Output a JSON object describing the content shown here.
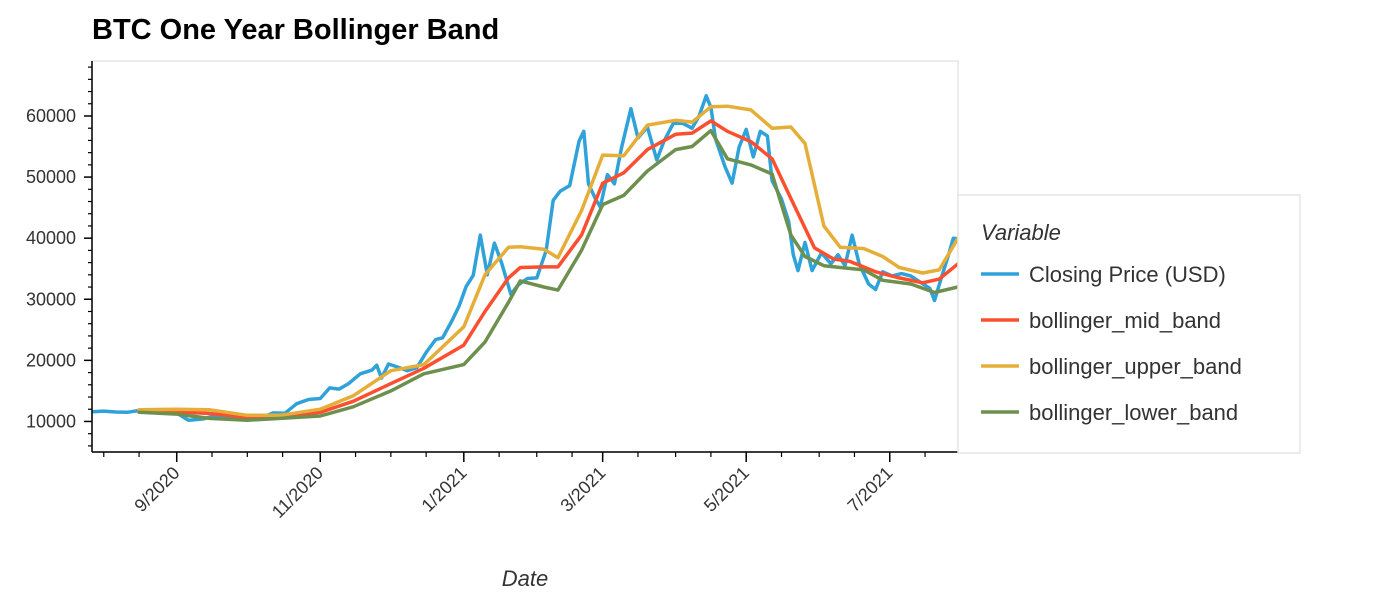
{
  "chart_data": {
    "type": "line",
    "title": "BTC One Year Bollinger Band",
    "xlabel": "Date",
    "ylabel": "",
    "x_range": [
      "2020-07-27",
      "2021-07-30"
    ],
    "ylim": [
      5000,
      69000
    ],
    "x_tick_labels": [
      {
        "date": "2020-09-01",
        "label": "9/2020"
      },
      {
        "date": "2020-11-01",
        "label": "11/2020"
      },
      {
        "date": "2021-01-01",
        "label": "1/2021"
      },
      {
        "date": "2021-03-01",
        "label": "3/2021"
      },
      {
        "date": "2021-05-01",
        "label": "5/2021"
      },
      {
        "date": "2021-07-01",
        "label": "7/2021"
      }
    ],
    "y_ticks": [
      10000,
      20000,
      30000,
      40000,
      50000,
      60000
    ],
    "y_tick_labels": [
      "10000",
      "20000",
      "30000",
      "40000",
      "50000",
      "60000"
    ],
    "grid": false,
    "legend": {
      "title": "Variable",
      "placement": "right"
    },
    "series": [
      {
        "name": "Closing Price (USD)",
        "color": "#30a2da",
        "points": [
          [
            "2020-07-27",
            11600
          ],
          [
            "2020-08-01",
            11700
          ],
          [
            "2020-08-06",
            11550
          ],
          [
            "2020-08-11",
            11500
          ],
          [
            "2020-08-16",
            11800
          ],
          [
            "2020-08-21",
            11650
          ],
          [
            "2020-08-26",
            11550
          ],
          [
            "2020-08-31",
            11700
          ],
          [
            "2020-09-03",
            10900
          ],
          [
            "2020-09-06",
            10200
          ],
          [
            "2020-09-09",
            10300
          ],
          [
            "2020-09-12",
            10400
          ],
          [
            "2020-09-17",
            10900
          ],
          [
            "2020-09-22",
            10500
          ],
          [
            "2020-09-27",
            10800
          ],
          [
            "2020-10-02",
            10550
          ],
          [
            "2020-10-07",
            10600
          ],
          [
            "2020-10-12",
            11400
          ],
          [
            "2020-10-17",
            11350
          ],
          [
            "2020-10-22",
            12900
          ],
          [
            "2020-10-27",
            13600
          ],
          [
            "2020-11-01",
            13750
          ],
          [
            "2020-11-05",
            15500
          ],
          [
            "2020-11-09",
            15300
          ],
          [
            "2020-11-13",
            16200
          ],
          [
            "2020-11-18",
            17800
          ],
          [
            "2020-11-23",
            18400
          ],
          [
            "2020-11-25",
            19200
          ],
          [
            "2020-11-27",
            17100
          ],
          [
            "2020-11-30",
            19400
          ],
          [
            "2020-12-04",
            18900
          ],
          [
            "2020-12-08",
            18300
          ],
          [
            "2020-12-12",
            18800
          ],
          [
            "2020-12-16",
            21300
          ],
          [
            "2020-12-20",
            23400
          ],
          [
            "2020-12-23",
            23700
          ],
          [
            "2020-12-27",
            26500
          ],
          [
            "2020-12-30",
            28900
          ],
          [
            "2021-01-02",
            32100
          ],
          [
            "2021-01-05",
            33900
          ],
          [
            "2021-01-08",
            40500
          ],
          [
            "2021-01-11",
            34000
          ],
          [
            "2021-01-14",
            39200
          ],
          [
            "2021-01-17",
            36000
          ],
          [
            "2021-01-21",
            30800
          ],
          [
            "2021-01-24",
            32300
          ],
          [
            "2021-01-28",
            33400
          ],
          [
            "2021-02-01",
            33500
          ],
          [
            "2021-02-05",
            38000
          ],
          [
            "2021-02-08",
            46200
          ],
          [
            "2021-02-11",
            47700
          ],
          [
            "2021-02-15",
            48600
          ],
          [
            "2021-02-19",
            55900
          ],
          [
            "2021-02-21",
            57500
          ],
          [
            "2021-02-23",
            48900
          ],
          [
            "2021-02-26",
            46400
          ],
          [
            "2021-02-28",
            45100
          ],
          [
            "2021-03-03",
            50400
          ],
          [
            "2021-03-06",
            48900
          ],
          [
            "2021-03-09",
            54800
          ],
          [
            "2021-03-13",
            61200
          ],
          [
            "2021-03-16",
            56400
          ],
          [
            "2021-03-20",
            58200
          ],
          [
            "2021-03-24",
            52800
          ],
          [
            "2021-03-27",
            55800
          ],
          [
            "2021-03-31",
            58800
          ],
          [
            "2021-04-04",
            58800
          ],
          [
            "2021-04-08",
            58000
          ],
          [
            "2021-04-11",
            60000
          ],
          [
            "2021-04-14",
            63300
          ],
          [
            "2021-04-16",
            61400
          ],
          [
            "2021-04-18",
            56200
          ],
          [
            "2021-04-22",
            51700
          ],
          [
            "2021-04-25",
            49000
          ],
          [
            "2021-04-28",
            54900
          ],
          [
            "2021-05-01",
            57800
          ],
          [
            "2021-05-04",
            53300
          ],
          [
            "2021-05-07",
            57500
          ],
          [
            "2021-05-10",
            56700
          ],
          [
            "2021-05-12",
            49400
          ],
          [
            "2021-05-16",
            46400
          ],
          [
            "2021-05-19",
            42800
          ],
          [
            "2021-05-21",
            37300
          ],
          [
            "2021-05-23",
            34700
          ],
          [
            "2021-05-26",
            39300
          ],
          [
            "2021-05-29",
            34700
          ],
          [
            "2021-06-02",
            37600
          ],
          [
            "2021-06-06",
            35800
          ],
          [
            "2021-06-09",
            37300
          ],
          [
            "2021-06-12",
            35500
          ],
          [
            "2021-06-15",
            40500
          ],
          [
            "2021-06-18",
            35800
          ],
          [
            "2021-06-22",
            32500
          ],
          [
            "2021-06-25",
            31600
          ],
          [
            "2021-06-28",
            34500
          ],
          [
            "2021-07-02",
            33800
          ],
          [
            "2021-07-06",
            34200
          ],
          [
            "2021-07-10",
            33800
          ],
          [
            "2021-07-14",
            32800
          ],
          [
            "2021-07-18",
            31800
          ],
          [
            "2021-07-20",
            29800
          ],
          [
            "2021-07-23",
            33600
          ],
          [
            "2021-07-26",
            37300
          ],
          [
            "2021-07-28",
            40000
          ],
          [
            "2021-07-30",
            39900
          ]
        ]
      },
      {
        "name": "bollinger_mid_band",
        "color": "#fc4f30",
        "points": [
          [
            "2020-08-16",
            11650
          ],
          [
            "2020-09-01",
            11600
          ],
          [
            "2020-09-15",
            11300
          ],
          [
            "2020-10-01",
            10700
          ],
          [
            "2020-10-15",
            10700
          ],
          [
            "2020-11-01",
            11500
          ],
          [
            "2020-11-15",
            13300
          ],
          [
            "2020-12-01",
            16200
          ],
          [
            "2020-12-15",
            18700
          ],
          [
            "2021-01-01",
            22500
          ],
          [
            "2021-01-10",
            28000
          ],
          [
            "2021-01-20",
            33500
          ],
          [
            "2021-01-25",
            35200
          ],
          [
            "2021-02-04",
            35300
          ],
          [
            "2021-02-10",
            35300
          ],
          [
            "2021-02-20",
            40500
          ],
          [
            "2021-03-01",
            49000
          ],
          [
            "2021-03-10",
            50700
          ],
          [
            "2021-03-20",
            54500
          ],
          [
            "2021-04-01",
            57000
          ],
          [
            "2021-04-08",
            57200
          ],
          [
            "2021-04-16",
            59200
          ],
          [
            "2021-04-23",
            57500
          ],
          [
            "2021-05-03",
            55800
          ],
          [
            "2021-05-12",
            53000
          ],
          [
            "2021-05-20",
            46500
          ],
          [
            "2021-05-30",
            38400
          ],
          [
            "2021-06-07",
            36600
          ],
          [
            "2021-06-14",
            36200
          ],
          [
            "2021-06-25",
            34500
          ],
          [
            "2021-07-05",
            33500
          ],
          [
            "2021-07-15",
            32700
          ],
          [
            "2021-07-22",
            33300
          ],
          [
            "2021-07-30",
            35800
          ]
        ]
      },
      {
        "name": "bollinger_upper_band",
        "color": "#e5ae38",
        "points": [
          [
            "2020-08-16",
            11900
          ],
          [
            "2020-09-01",
            12000
          ],
          [
            "2020-09-15",
            11900
          ],
          [
            "2020-10-01",
            11000
          ],
          [
            "2020-10-15",
            11000
          ],
          [
            "2020-11-01",
            12000
          ],
          [
            "2020-11-15",
            14200
          ],
          [
            "2020-12-01",
            18300
          ],
          [
            "2020-12-15",
            19300
          ],
          [
            "2021-01-01",
            25500
          ],
          [
            "2021-01-10",
            34000
          ],
          [
            "2021-01-20",
            38500
          ],
          [
            "2021-01-25",
            38600
          ],
          [
            "2021-02-04",
            38200
          ],
          [
            "2021-02-10",
            36800
          ],
          [
            "2021-02-20",
            44500
          ],
          [
            "2021-03-01",
            53600
          ],
          [
            "2021-03-10",
            53500
          ],
          [
            "2021-03-20",
            58500
          ],
          [
            "2021-04-01",
            59300
          ],
          [
            "2021-04-08",
            59000
          ],
          [
            "2021-04-16",
            61500
          ],
          [
            "2021-04-23",
            61600
          ],
          [
            "2021-05-03",
            61000
          ],
          [
            "2021-05-12",
            58000
          ],
          [
            "2021-05-20",
            58200
          ],
          [
            "2021-05-26",
            55500
          ],
          [
            "2021-06-03",
            42000
          ],
          [
            "2021-06-10",
            38500
          ],
          [
            "2021-06-20",
            38300
          ],
          [
            "2021-06-28",
            37000
          ],
          [
            "2021-07-05",
            35200
          ],
          [
            "2021-07-15",
            34300
          ],
          [
            "2021-07-22",
            34800
          ],
          [
            "2021-07-30",
            40000
          ]
        ]
      },
      {
        "name": "bollinger_lower_band",
        "color": "#6d904f",
        "points": [
          [
            "2020-08-16",
            11500
          ],
          [
            "2020-09-01",
            11200
          ],
          [
            "2020-09-15",
            10500
          ],
          [
            "2020-10-01",
            10200
          ],
          [
            "2020-10-15",
            10500
          ],
          [
            "2020-11-01",
            10900
          ],
          [
            "2020-11-15",
            12400
          ],
          [
            "2020-12-01",
            15000
          ],
          [
            "2020-12-15",
            17800
          ],
          [
            "2021-01-01",
            19300
          ],
          [
            "2021-01-10",
            23000
          ],
          [
            "2021-01-20",
            29500
          ],
          [
            "2021-01-25",
            33000
          ],
          [
            "2021-02-04",
            32000
          ],
          [
            "2021-02-10",
            31500
          ],
          [
            "2021-02-20",
            38000
          ],
          [
            "2021-03-01",
            45500
          ],
          [
            "2021-03-10",
            47000
          ],
          [
            "2021-03-20",
            51000
          ],
          [
            "2021-04-01",
            54500
          ],
          [
            "2021-04-08",
            55000
          ],
          [
            "2021-04-16",
            57600
          ],
          [
            "2021-04-23",
            53000
          ],
          [
            "2021-05-03",
            52000
          ],
          [
            "2021-05-12",
            50500
          ],
          [
            "2021-05-20",
            40500
          ],
          [
            "2021-05-26",
            37000
          ],
          [
            "2021-06-03",
            35500
          ],
          [
            "2021-06-10",
            35200
          ],
          [
            "2021-06-20",
            34800
          ],
          [
            "2021-06-28",
            33100
          ],
          [
            "2021-07-10",
            32500
          ],
          [
            "2021-07-20",
            31100
          ],
          [
            "2021-07-30",
            32000
          ]
        ]
      }
    ]
  }
}
